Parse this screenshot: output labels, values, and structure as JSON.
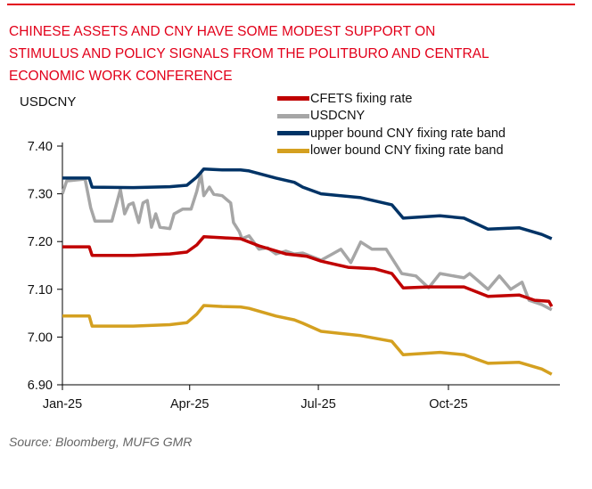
{
  "title_lines": [
    "CHINESE ASSETS AND CNY HAVE SOME MODEST SUPPORT ON",
    "STIMULUS AND POLICY SIGNALS FROM THE POLITBURO AND CENTRAL",
    "ECONOMIC WORK CONFERENCE"
  ],
  "source": "Source: Bloomberg, MUFG GMR",
  "colors": {
    "title": "#e2001a",
    "cfets": "#c00000",
    "usdcny": "#a6a6a6",
    "upper": "#003366",
    "lower": "#d4a020"
  },
  "chart_data": {
    "type": "line",
    "title": "CHINESE ASSETS AND CNY HAVE SOME MODEST SUPPORT ON STIMULUS AND POLICY SIGNALS FROM THE POLITBURO AND CENTRAL ECONOMIC WORK CONFERENCE",
    "ylabel": "USDCNY",
    "xlabel": "",
    "ylim": [
      6.9,
      7.4
    ],
    "yticks": [
      "7.40",
      "7.30",
      "7.20",
      "7.10",
      "7.00",
      "6.90"
    ],
    "xlim": [
      "2025-01-01",
      "2025-12-13"
    ],
    "xticks": [
      {
        "label": "Jan-25",
        "date": "2025-01-01"
      },
      {
        "label": "Apr-25",
        "date": "2025-04-01"
      },
      {
        "label": "Jul-25",
        "date": "2025-07-01"
      },
      {
        "label": "Oct-25",
        "date": "2025-10-01"
      }
    ],
    "grid": false,
    "legend_position": "top-right",
    "series": [
      {
        "name": "CFETS fixing rate",
        "color": "#c00000",
        "points": [
          [
            "2025-01-01",
            7.189
          ],
          [
            "2025-01-20",
            7.189
          ],
          [
            "2025-01-22",
            7.171
          ],
          [
            "2025-02-20",
            7.171
          ],
          [
            "2025-03-18",
            7.174
          ],
          [
            "2025-03-30",
            7.178
          ],
          [
            "2025-04-06",
            7.193
          ],
          [
            "2025-04-11",
            7.21
          ],
          [
            "2025-04-24",
            7.208
          ],
          [
            "2025-05-07",
            7.206
          ],
          [
            "2025-05-20",
            7.191
          ],
          [
            "2025-06-08",
            7.174
          ],
          [
            "2025-06-23",
            7.169
          ],
          [
            "2025-07-03",
            7.159
          ],
          [
            "2025-07-22",
            7.146
          ],
          [
            "2025-08-10",
            7.143
          ],
          [
            "2025-08-22",
            7.133
          ],
          [
            "2025-08-30",
            7.103
          ],
          [
            "2025-09-17",
            7.105
          ],
          [
            "2025-10-12",
            7.105
          ],
          [
            "2025-10-29",
            7.085
          ],
          [
            "2025-11-20",
            7.088
          ],
          [
            "2025-12-01",
            7.077
          ],
          [
            "2025-12-11",
            7.075
          ],
          [
            "2025-12-13",
            7.064
          ]
        ]
      },
      {
        "name": "USDCNY",
        "color": "#a6a6a6",
        "points": [
          [
            "2025-01-01",
            7.3
          ],
          [
            "2025-01-04",
            7.327
          ],
          [
            "2025-01-17",
            7.331
          ],
          [
            "2025-01-21",
            7.271
          ],
          [
            "2025-01-24",
            7.243
          ],
          [
            "2025-02-05",
            7.243
          ],
          [
            "2025-02-11",
            7.309
          ],
          [
            "2025-02-14",
            7.258
          ],
          [
            "2025-02-17",
            7.277
          ],
          [
            "2025-02-20",
            7.281
          ],
          [
            "2025-02-24",
            7.24
          ],
          [
            "2025-02-27",
            7.281
          ],
          [
            "2025-03-02",
            7.286
          ],
          [
            "2025-03-05",
            7.23
          ],
          [
            "2025-03-08",
            7.258
          ],
          [
            "2025-03-11",
            7.23
          ],
          [
            "2025-03-18",
            7.227
          ],
          [
            "2025-03-21",
            7.258
          ],
          [
            "2025-03-27",
            7.268
          ],
          [
            "2025-04-02",
            7.268
          ],
          [
            "2025-04-06",
            7.305
          ],
          [
            "2025-04-09",
            7.342
          ],
          [
            "2025-04-11",
            7.296
          ],
          [
            "2025-04-15",
            7.314
          ],
          [
            "2025-04-18",
            7.299
          ],
          [
            "2025-04-24",
            7.296
          ],
          [
            "2025-04-30",
            7.281
          ],
          [
            "2025-05-02",
            7.24
          ],
          [
            "2025-05-06",
            7.221
          ],
          [
            "2025-05-08",
            7.206
          ],
          [
            "2025-05-13",
            7.212
          ],
          [
            "2025-05-20",
            7.184
          ],
          [
            "2025-05-26",
            7.187
          ],
          [
            "2025-06-01",
            7.174
          ],
          [
            "2025-06-08",
            7.18
          ],
          [
            "2025-06-14",
            7.174
          ],
          [
            "2025-06-20",
            7.176
          ],
          [
            "2025-07-03",
            7.161
          ],
          [
            "2025-07-11",
            7.174
          ],
          [
            "2025-07-17",
            7.184
          ],
          [
            "2025-07-24",
            7.156
          ],
          [
            "2025-07-31",
            7.199
          ],
          [
            "2025-08-08",
            7.184
          ],
          [
            "2025-08-18",
            7.184
          ],
          [
            "2025-08-29",
            7.133
          ],
          [
            "2025-09-08",
            7.128
          ],
          [
            "2025-09-17",
            7.103
          ],
          [
            "2025-09-25",
            7.133
          ],
          [
            "2025-10-12",
            7.124
          ],
          [
            "2025-10-16",
            7.133
          ],
          [
            "2025-10-29",
            7.1
          ],
          [
            "2025-11-06",
            7.128
          ],
          [
            "2025-11-14",
            7.1
          ],
          [
            "2025-11-22",
            7.115
          ],
          [
            "2025-11-27",
            7.077
          ],
          [
            "2025-12-06",
            7.068
          ],
          [
            "2025-12-13",
            7.057
          ]
        ]
      },
      {
        "name": "upper bound CNY fixing rate band",
        "color": "#003366",
        "points": [
          [
            "2025-01-01",
            7.333
          ],
          [
            "2025-01-20",
            7.333
          ],
          [
            "2025-01-22",
            7.314
          ],
          [
            "2025-02-20",
            7.313
          ],
          [
            "2025-03-18",
            7.315
          ],
          [
            "2025-03-30",
            7.318
          ],
          [
            "2025-04-06",
            7.335
          ],
          [
            "2025-04-11",
            7.352
          ],
          [
            "2025-04-24",
            7.35
          ],
          [
            "2025-05-07",
            7.35
          ],
          [
            "2025-05-13",
            7.348
          ],
          [
            "2025-06-01",
            7.333
          ],
          [
            "2025-06-14",
            7.324
          ],
          [
            "2025-06-20",
            7.314
          ],
          [
            "2025-07-03",
            7.3
          ],
          [
            "2025-07-31",
            7.292
          ],
          [
            "2025-08-22",
            7.277
          ],
          [
            "2025-08-30",
            7.249
          ],
          [
            "2025-09-25",
            7.254
          ],
          [
            "2025-10-12",
            7.249
          ],
          [
            "2025-10-29",
            7.226
          ],
          [
            "2025-11-20",
            7.229
          ],
          [
            "2025-12-06",
            7.215
          ],
          [
            "2025-12-13",
            7.206
          ]
        ]
      },
      {
        "name": "lower bound CNY fixing rate band",
        "color": "#d4a020",
        "points": [
          [
            "2025-01-01",
            7.044
          ],
          [
            "2025-01-20",
            7.044
          ],
          [
            "2025-01-22",
            7.023
          ],
          [
            "2025-02-20",
            7.023
          ],
          [
            "2025-03-18",
            7.026
          ],
          [
            "2025-03-30",
            7.03
          ],
          [
            "2025-04-06",
            7.048
          ],
          [
            "2025-04-11",
            7.066
          ],
          [
            "2025-04-24",
            7.064
          ],
          [
            "2025-05-07",
            7.063
          ],
          [
            "2025-05-13",
            7.06
          ],
          [
            "2025-06-01",
            7.044
          ],
          [
            "2025-06-14",
            7.036
          ],
          [
            "2025-06-20",
            7.029
          ],
          [
            "2025-07-03",
            7.012
          ],
          [
            "2025-07-31",
            7.003
          ],
          [
            "2025-08-22",
            6.991
          ],
          [
            "2025-08-30",
            6.963
          ],
          [
            "2025-09-25",
            6.968
          ],
          [
            "2025-10-12",
            6.963
          ],
          [
            "2025-10-29",
            6.945
          ],
          [
            "2025-11-20",
            6.947
          ],
          [
            "2025-12-06",
            6.933
          ],
          [
            "2025-12-13",
            6.922
          ]
        ]
      }
    ]
  }
}
